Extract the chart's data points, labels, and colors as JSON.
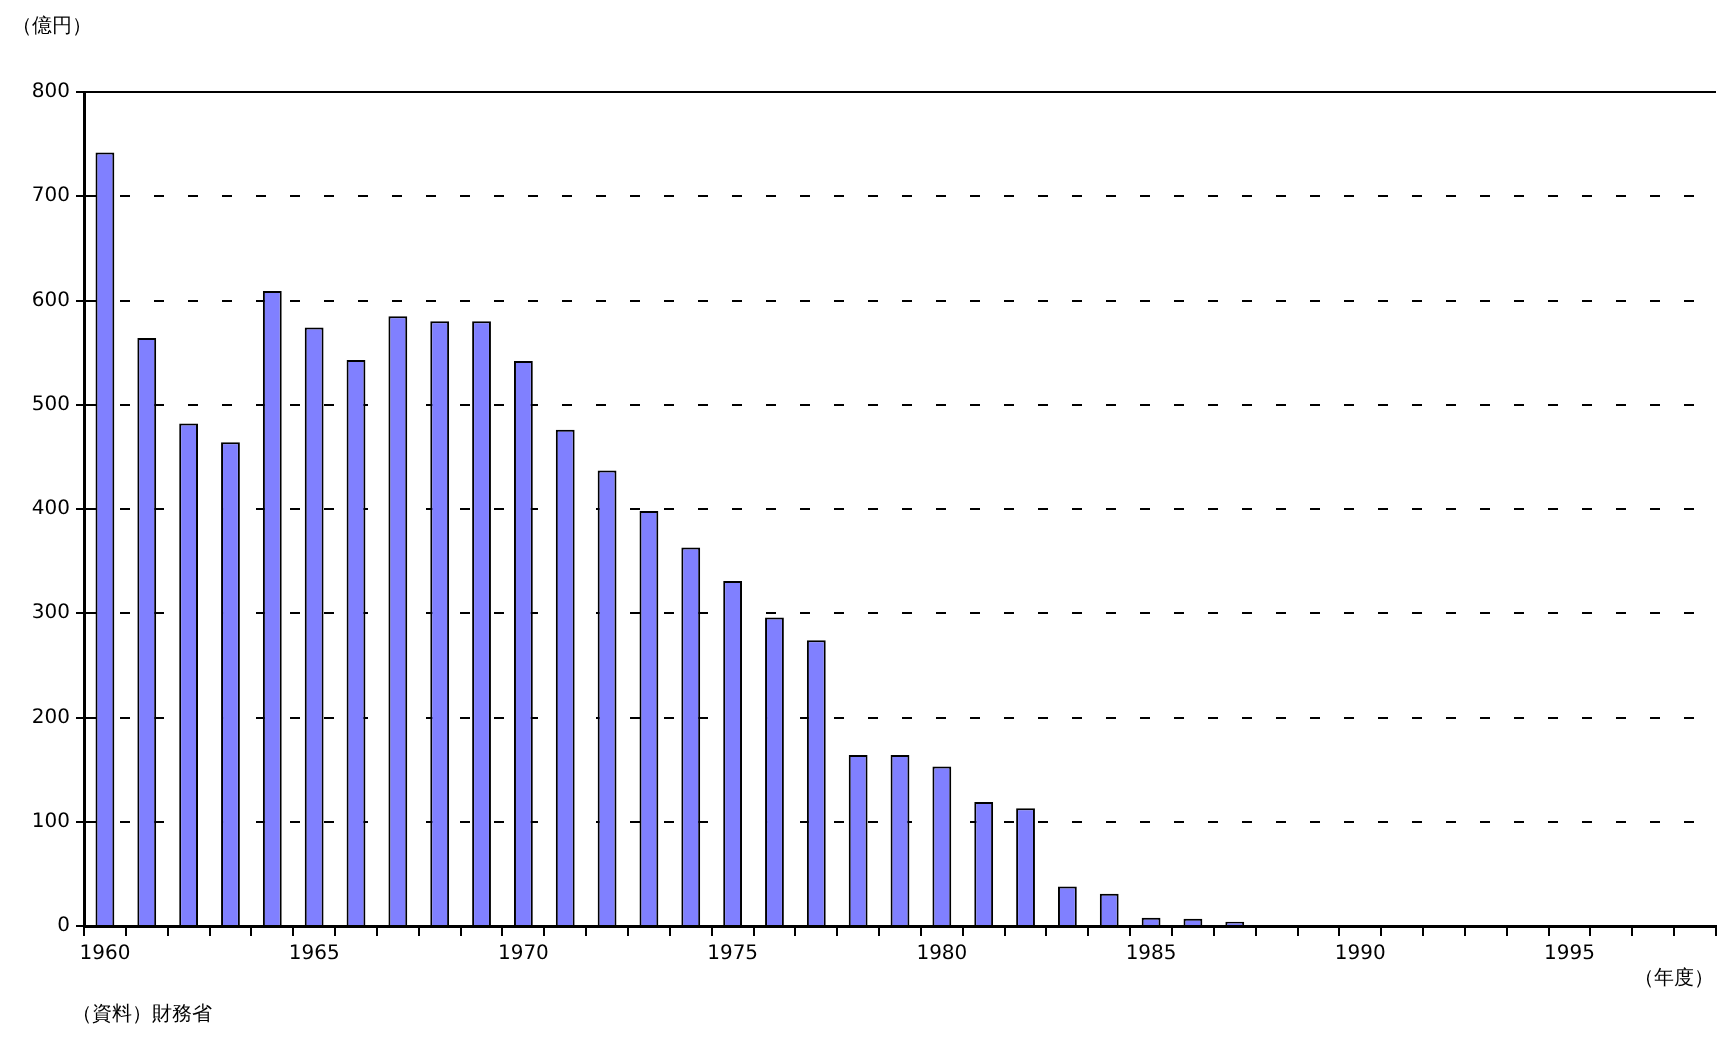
{
  "chart_data": {
    "type": "bar",
    "ylabel": "（億円）",
    "xlabel": "（年度）",
    "annotations": [
      "（資料）財務省"
    ],
    "categories": [
      "1960",
      null,
      null,
      null,
      null,
      "1965",
      null,
      null,
      null,
      null,
      "1970",
      null,
      null,
      null,
      null,
      "1975",
      null,
      null,
      null,
      null,
      "1980",
      null,
      null,
      null,
      null,
      "1985",
      null,
      null,
      null,
      null,
      "1990",
      null,
      null,
      null,
      null,
      "1995",
      null,
      null,
      null
    ],
    "values": [
      742,
      564,
      482,
      464,
      609,
      574,
      543,
      585,
      580,
      580,
      542,
      476,
      437,
      398,
      363,
      331,
      296,
      274,
      164,
      164,
      153,
      119,
      113,
      38,
      31,
      8,
      7,
      4,
      null,
      null,
      null,
      null,
      null,
      null,
      null,
      null,
      null,
      null,
      null
    ],
    "color": "#8080ff",
    "ylim": [
      0,
      800
    ],
    "yticks": [
      0,
      100,
      200,
      300,
      400,
      500,
      600,
      700,
      800
    ],
    "grid": "y",
    "legend": false
  }
}
